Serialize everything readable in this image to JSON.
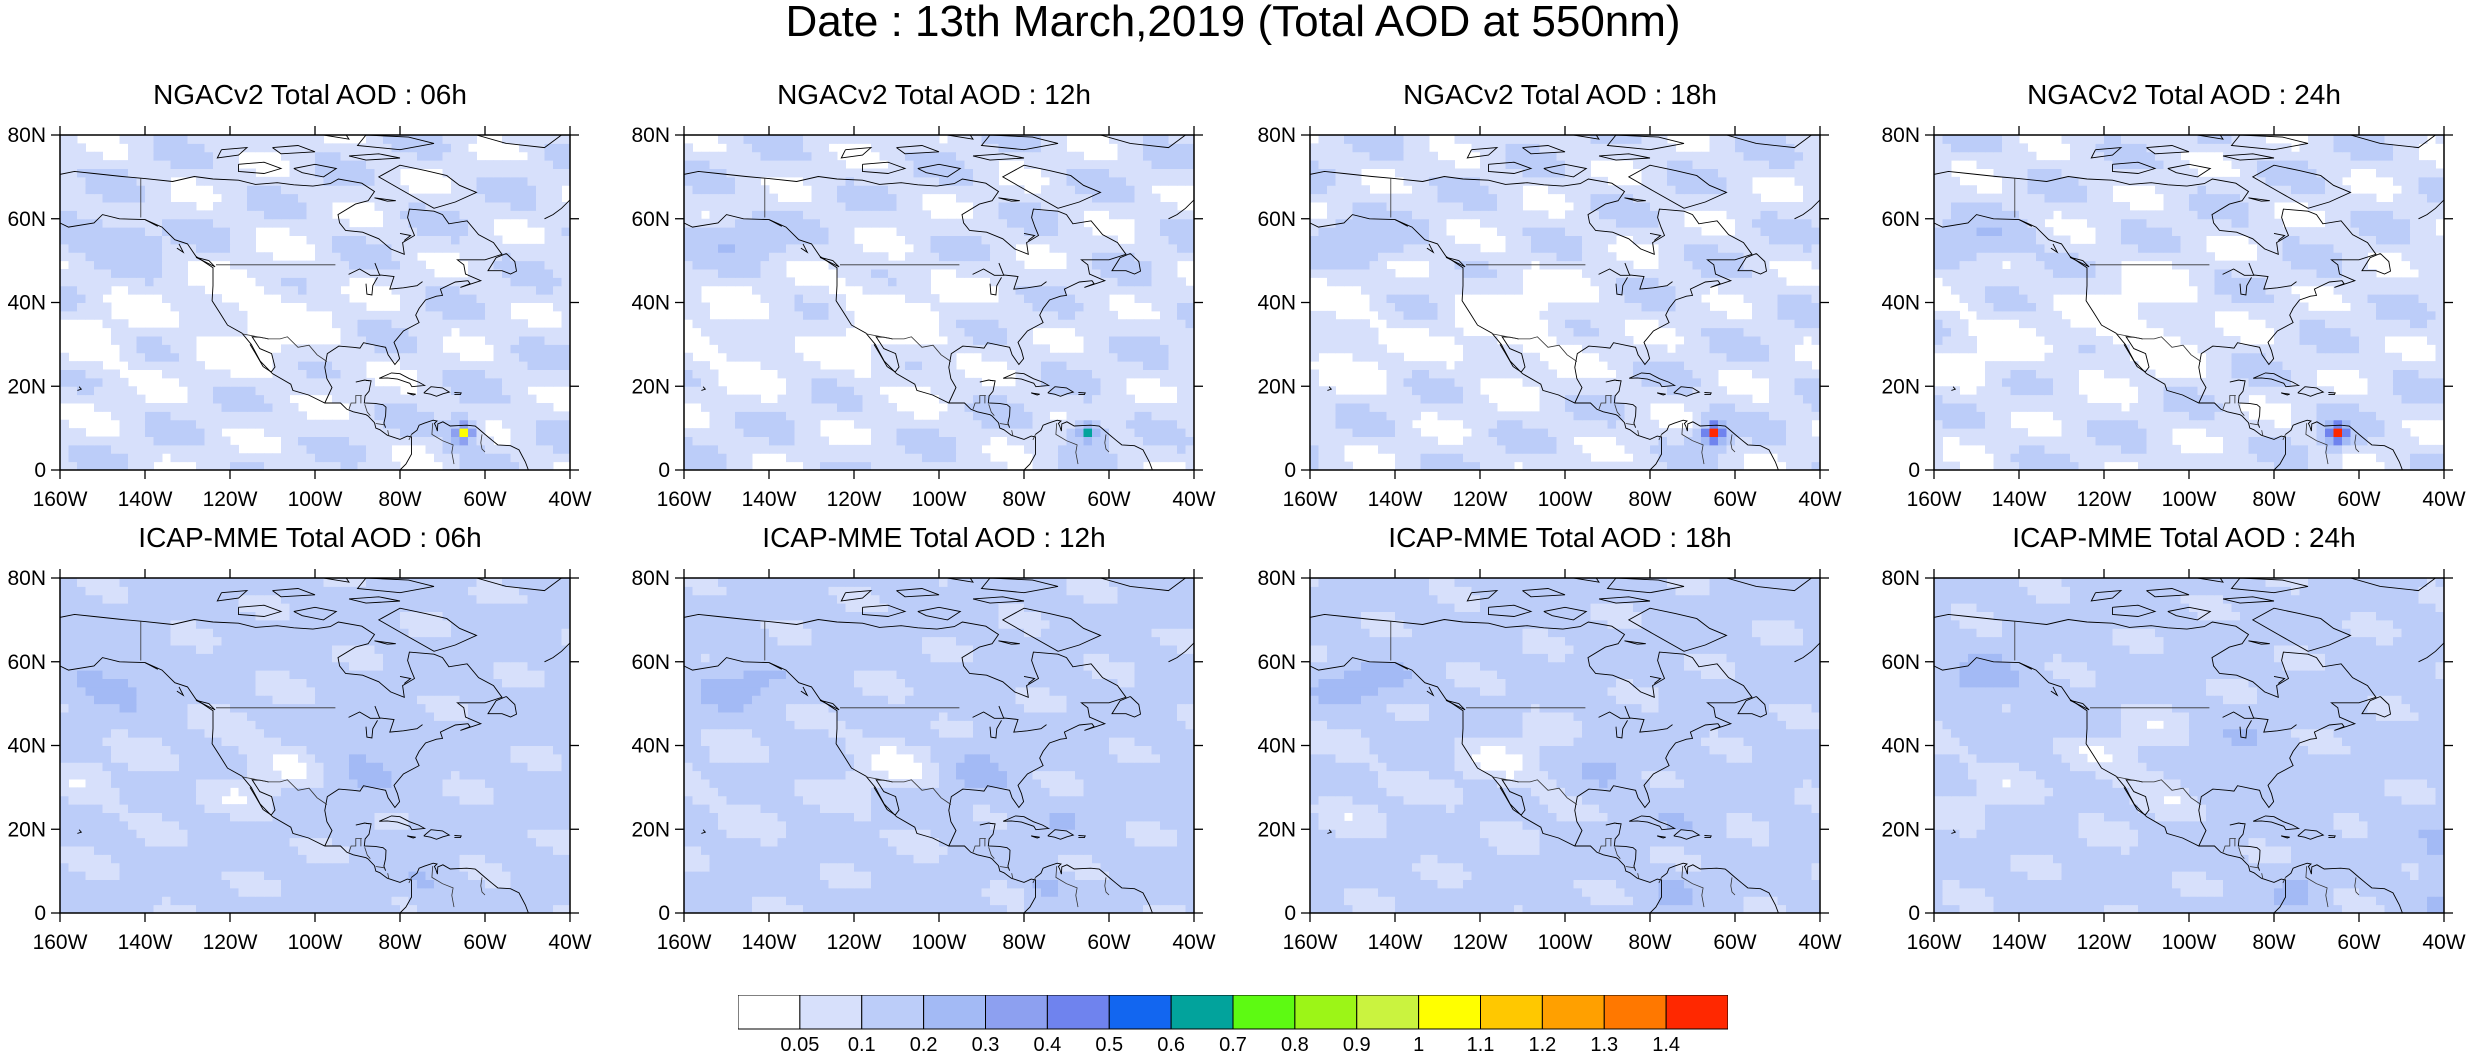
{
  "title": "Date : 13th March,2019 (Total AOD at 550nm)",
  "panels": [
    {
      "title": "NGACv2 Total AOD : 06h",
      "model": "NGAC",
      "lead": 6
    },
    {
      "title": "NGACv2 Total AOD : 12h",
      "model": "NGAC",
      "lead": 12
    },
    {
      "title": "NGACv2 Total AOD : 18h",
      "model": "NGAC",
      "lead": 18
    },
    {
      "title": "NGACv2 Total AOD : 24h",
      "model": "NGAC",
      "lead": 24
    },
    {
      "title": "ICAP-MME Total AOD : 06h",
      "model": "ICAP",
      "lead": 6
    },
    {
      "title": "ICAP-MME Total AOD : 12h",
      "model": "ICAP",
      "lead": 12
    },
    {
      "title": "ICAP-MME Total AOD : 18h",
      "model": "ICAP",
      "lead": 18
    },
    {
      "title": "ICAP-MME Total AOD : 24h",
      "model": "ICAP",
      "lead": 24
    }
  ],
  "map": {
    "lon_range": [
      -160,
      -40
    ],
    "lat_range": [
      0,
      80
    ],
    "lon_ticks": [
      "160W",
      "140W",
      "120W",
      "100W",
      "80W",
      "60W",
      "40W"
    ],
    "lat_ticks": [
      "0",
      "20N",
      "40N",
      "60N",
      "80N"
    ]
  },
  "colorbar": {
    "colors": [
      "#ffffff",
      "#d7e0fb",
      "#bccdf9",
      "#a3baf5",
      "#8da0f0",
      "#6f83ee",
      "#1266f0",
      "#02a39c",
      "#5dfa12",
      "#9cf517",
      "#caf33f",
      "#ffff00",
      "#ffc800",
      "#ffa000",
      "#ff7800",
      "#ff2800"
    ],
    "labels": [
      "0.05",
      "0.1",
      "0.2",
      "0.3",
      "0.4",
      "0.5",
      "0.6",
      "0.7",
      "0.8",
      "0.9",
      "1",
      "1.1",
      "1.2",
      "1.3",
      "1.4"
    ]
  }
}
